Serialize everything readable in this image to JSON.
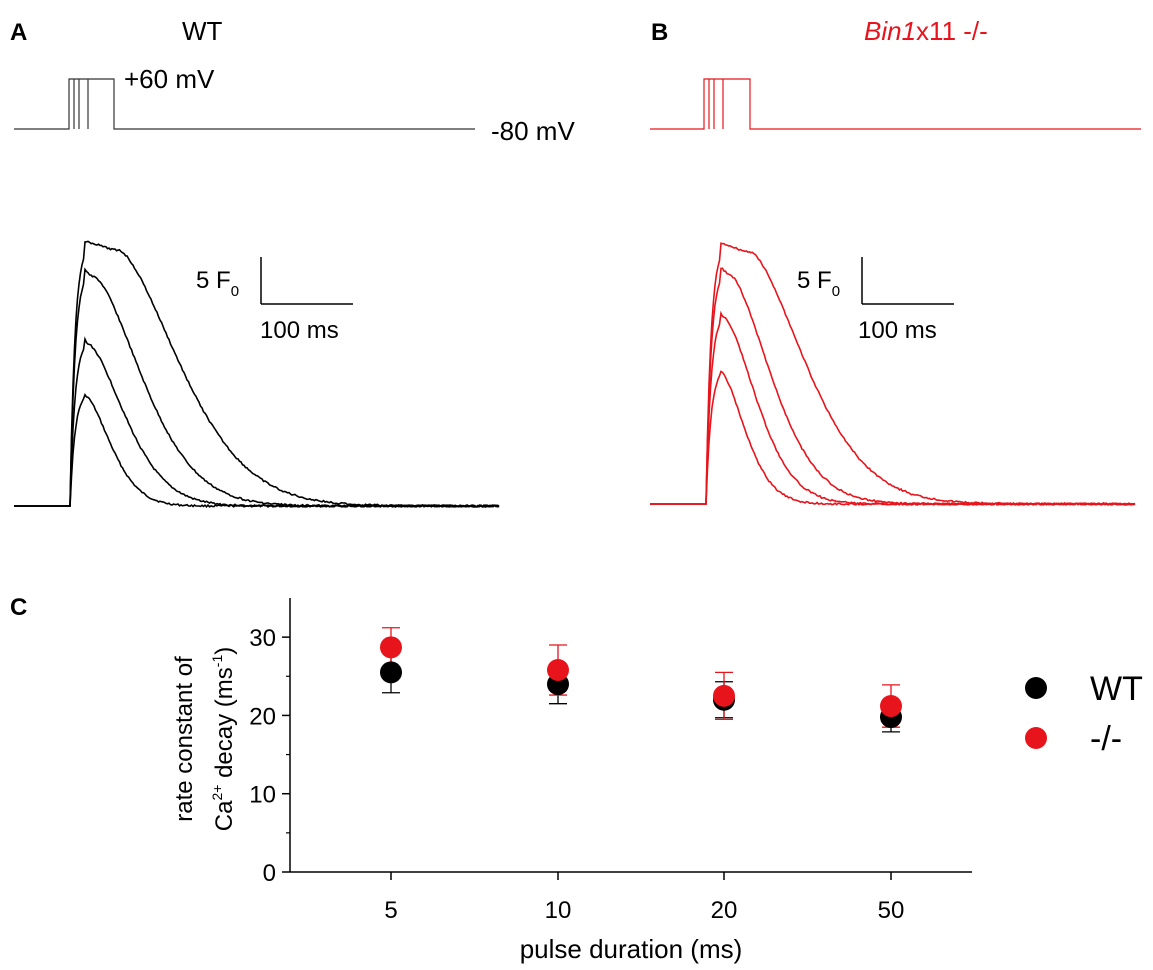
{
  "panels": {
    "A": {
      "letter": "A",
      "title": "WT",
      "trace_color": "#000000"
    },
    "B": {
      "letter": "B",
      "title_italic": "Bin1",
      "title_rest": "x11 -/-",
      "trace_color": "#e8141c"
    },
    "C": {
      "letter": "C"
    }
  },
  "protocol": {
    "step_label": "+60 mV",
    "holding_label": "-80 mV"
  },
  "scale_bar": {
    "y_label_main": "5 F",
    "y_label_sub": "0",
    "x_label": "100 ms"
  },
  "chart_data": {
    "type": "scatter",
    "categories": [
      "5",
      "10",
      "20",
      "50"
    ],
    "xlabel": "pulse duration (ms)",
    "ylabel_line1": "rate constant of",
    "ylabel_line2_prefix": "Ca",
    "ylabel_line2_sup": "2+",
    "ylabel_line2_mid": " decay (ms",
    "ylabel_line2_sup2": "-1",
    "ylabel_line2_end": ")",
    "ylim": [
      0,
      35
    ],
    "yticks": [
      "0",
      "10",
      "20",
      "30"
    ],
    "legend_position": "right",
    "series": [
      {
        "name": "WT",
        "color": "#000000",
        "values": [
          25.5,
          24.0,
          22.0,
          19.8
        ],
        "err": [
          2.6,
          2.5,
          2.3,
          1.9
        ]
      },
      {
        "name": "-/-",
        "color": "#e8141c",
        "values": [
          28.7,
          25.8,
          22.5,
          21.2
        ],
        "err": [
          2.5,
          3.2,
          3.0,
          2.7
        ]
      }
    ]
  }
}
